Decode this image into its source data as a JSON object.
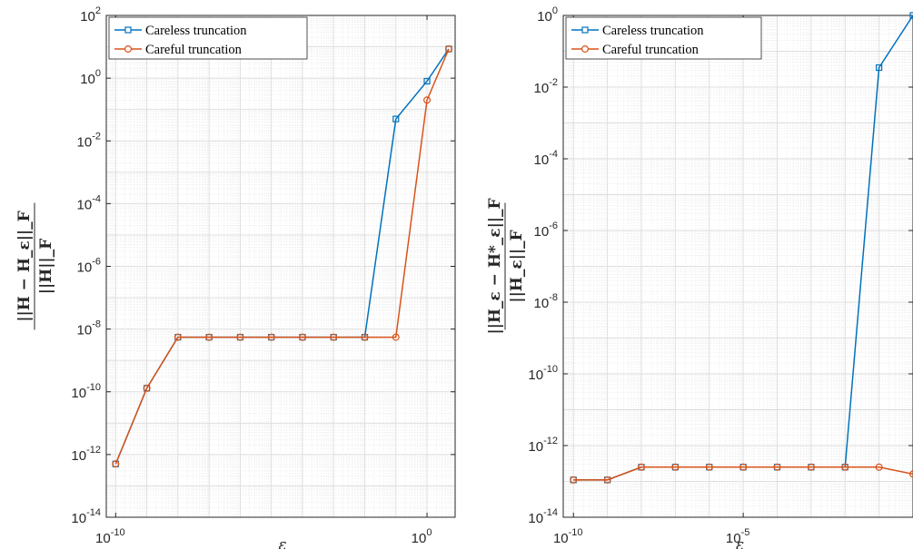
{
  "chart_data": [
    {
      "type": "line",
      "xscale": "log",
      "yscale": "log",
      "xlabel": "ε",
      "ylabel": "||H − H_ε||_F / ||H||_F",
      "xlim": [
        5e-11,
        8
      ],
      "ylim": [
        1e-14,
        100
      ],
      "grid": true,
      "legend_location": "top-left",
      "x_ticks": [
        {
          "base": "10",
          "exp": "-10"
        },
        {
          "base": "10",
          "exp": "0"
        }
      ],
      "y_ticks": [
        {
          "base": "10",
          "exp": "-14"
        },
        {
          "base": "10",
          "exp": "-12"
        },
        {
          "base": "10",
          "exp": "-10"
        },
        {
          "base": "10",
          "exp": "-8"
        },
        {
          "base": "10",
          "exp": "-6"
        },
        {
          "base": "10",
          "exp": "-4"
        },
        {
          "base": "10",
          "exp": "-2"
        },
        {
          "base": "10",
          "exp": "0"
        },
        {
          "base": "10",
          "exp": "2"
        }
      ],
      "series": [
        {
          "name": "Careless truncation",
          "color": "#0072BD",
          "marker": "square",
          "x": [
            1e-10,
            1e-09,
            1e-08,
            1e-07,
            1e-06,
            1e-05,
            0.0001,
            0.001,
            0.01,
            0.1,
            1,
            5
          ],
          "y": [
            5e-13,
            1.3e-10,
            5.5e-09,
            5.5e-09,
            5.5e-09,
            5.5e-09,
            5.5e-09,
            5.5e-09,
            5.5e-09,
            0.05,
            0.8,
            8.5
          ]
        },
        {
          "name": "Careful truncation",
          "color": "#D95319",
          "marker": "circle",
          "x": [
            1e-10,
            1e-09,
            1e-08,
            1e-07,
            1e-06,
            1e-05,
            0.0001,
            0.001,
            0.01,
            0.1,
            1,
            5
          ],
          "y": [
            5e-13,
            1.3e-10,
            5.5e-09,
            5.5e-09,
            5.5e-09,
            5.5e-09,
            5.5e-09,
            5.5e-09,
            5.5e-09,
            5.5e-09,
            0.2,
            8.5
          ]
        }
      ]
    },
    {
      "type": "line",
      "xscale": "log",
      "yscale": "log",
      "xlabel": "ε",
      "ylabel": "||H_ε − H*_ε||_F / ||H_ε||_F",
      "xlim": [
        5e-11,
        1
      ],
      "ylim": [
        1e-14,
        1
      ],
      "grid": true,
      "legend_location": "top-left",
      "x_ticks": [
        {
          "base": "10",
          "exp": "-10"
        },
        {
          "base": "10",
          "exp": "-5"
        }
      ],
      "y_ticks": [
        {
          "base": "10",
          "exp": "-14"
        },
        {
          "base": "10",
          "exp": "-12"
        },
        {
          "base": "10",
          "exp": "-10"
        },
        {
          "base": "10",
          "exp": "-8"
        },
        {
          "base": "10",
          "exp": "-6"
        },
        {
          "base": "10",
          "exp": "-4"
        },
        {
          "base": "10",
          "exp": "-2"
        },
        {
          "base": "10",
          "exp": "0"
        }
      ],
      "series": [
        {
          "name": "Careless truncation",
          "color": "#0072BD",
          "marker": "square",
          "x": [
            1e-10,
            1e-09,
            1e-08,
            1e-07,
            1e-06,
            1e-05,
            0.0001,
            0.001,
            0.01,
            0.1,
            1
          ],
          "y": [
            1.1e-13,
            1.1e-13,
            2.5e-13,
            2.5e-13,
            2.5e-13,
            2.5e-13,
            2.5e-13,
            2.5e-13,
            2.5e-13,
            0.035,
            1
          ]
        },
        {
          "name": "Careful truncation",
          "color": "#D95319",
          "marker": "circle",
          "x": [
            1e-10,
            1e-09,
            1e-08,
            1e-07,
            1e-06,
            1e-05,
            0.0001,
            0.001,
            0.01,
            0.1,
            1
          ],
          "y": [
            1.1e-13,
            1.1e-13,
            2.5e-13,
            2.5e-13,
            2.5e-13,
            2.5e-13,
            2.5e-13,
            2.5e-13,
            2.5e-13,
            2.5e-13,
            1.6e-13
          ]
        }
      ]
    }
  ]
}
